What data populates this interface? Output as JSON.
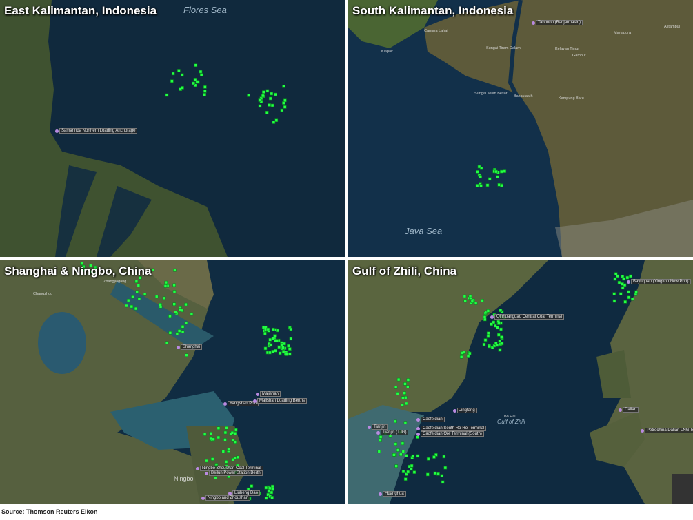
{
  "panels": [
    {
      "title": "East Kalimantan, Indonesia",
      "sea_label": "Flores Sea",
      "ports": [
        "Samarinda Northern Loading Anchorage"
      ],
      "towns": []
    },
    {
      "title": "South Kalimantan, Indonesia",
      "sea_label": "Java Sea",
      "ports": [
        "Tabonoo (Banjarmasin)"
      ],
      "towns": [
        "Kiapak",
        "Camara Lahat",
        "Sungai Telan Besar",
        "Bakaulatuh",
        "Kampung Baru",
        "Martapura",
        "Gambut",
        "Astambul",
        "Kelayan Timur",
        "Sungai Tiram Dalam"
      ]
    },
    {
      "title": "Shanghai & Ningbo, China",
      "sea_label": "",
      "ports": [
        "Shanghai",
        "Yangshan Port",
        "Majishan",
        "Majishan Loading Berths",
        "Ningbo Zhoushan Coal Terminal",
        "Beilun Power Station Berth",
        "Liuheng Dao",
        "Ningbo and Zhoushan"
      ],
      "towns": [
        "Zhangjiagang",
        "Changzhou",
        "Ningbo"
      ]
    },
    {
      "title": "Gulf of Zhili,  China",
      "sea_label": "Gulf of Zhili",
      "sea_sublabel": "Bo Hai",
      "ports": [
        "Qinhuangdao Central Coal Terminal",
        "Jingtang",
        "Caofeidian",
        "Caofeidian South Ro-Ro Terminal",
        "Caofeidian Ore Terminal (South)",
        "Tianjin",
        "Tianjin (TJG)",
        "Dalian",
        "Petrochina Dalian LNG Terminal",
        "Bayuquan (Yingkou New Port)",
        "Huanghua"
      ],
      "towns": []
    }
  ],
  "source": "Source: Thomson  Reuters Eikon",
  "colors": {
    "ship": "#22ff44",
    "water": "#0f2a40",
    "land": "#4d5a35",
    "port_marker": "#b98ae0"
  }
}
